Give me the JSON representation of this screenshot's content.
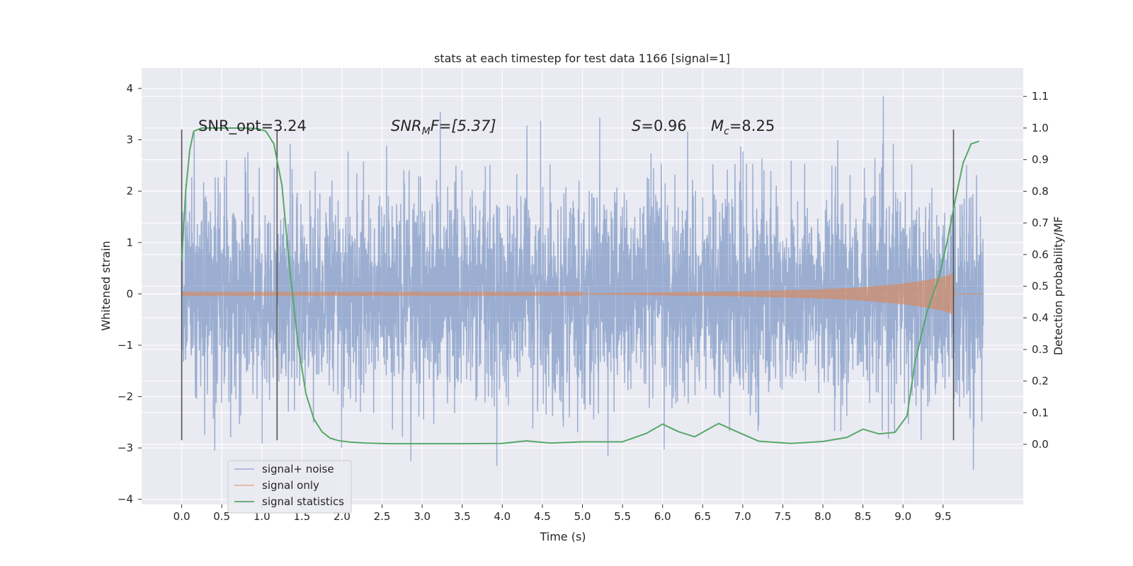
{
  "chart_data": {
    "type": "line",
    "title": "stats at each timestep for test data 1166 [signal=1]",
    "xlabel": "Time (s)",
    "ylabel_left": "Whitened strain",
    "ylabel_right": "Detection probability/MF",
    "xlim": [
      -0.5,
      10.5
    ],
    "ylim_left": [
      -4.1,
      4.4
    ],
    "ylim_right": [
      -0.19,
      1.19
    ],
    "x_ticks": [
      "0.0",
      "0.5",
      "1.0",
      "1.5",
      "2.0",
      "2.5",
      "3.0",
      "3.5",
      "4.0",
      "4.5",
      "5.0",
      "5.5",
      "6.0",
      "6.5",
      "7.0",
      "7.5",
      "8.0",
      "8.5",
      "9.0",
      "9.5"
    ],
    "y_left_ticks": [
      "4",
      "3",
      "2",
      "1",
      "0",
      "−1",
      "−2",
      "−3",
      "−4"
    ],
    "y_right_ticks": [
      "1.1",
      "1.0",
      "0.9",
      "0.8",
      "0.7",
      "0.6",
      "0.5",
      "0.4",
      "0.3",
      "0.2",
      "0.1",
      "0.0"
    ],
    "grid": true,
    "legend_position": "bottom-left",
    "colors": {
      "background": "#eaeaf2",
      "grid": "#ffffff",
      "noise": "#4c72b0",
      "signal": "#dd8452",
      "statistics": "#55a868",
      "vlines": "#555555"
    },
    "annotations": {
      "snr_opt": "SNR_opt=3.24",
      "snr_mf_name": "SNR",
      "snr_mf_sub": "M",
      "snr_mf_rest": "F=[5.37]",
      "s_name": "S",
      "s_rest": "=0.96",
      "mc_name": "M",
      "mc_sub": "c",
      "mc_rest": "=8.25"
    },
    "vertical_lines_x": [
      0.0,
      1.19,
      9.63
    ],
    "series": [
      {
        "name": "signal+ noise",
        "axis": "left",
        "x_range": [
          0.0,
          10.0
        ],
        "typical_amplitude": 1.4,
        "max": 4.05,
        "min": -3.7
      },
      {
        "name": "signal only",
        "axis": "left",
        "x_range": [
          0.0,
          10.0
        ],
        "envelope_x": [
          0.0,
          5.0,
          6.0,
          7.0,
          8.0,
          8.5,
          9.0,
          9.3,
          9.5,
          9.63,
          9.64,
          10.0
        ],
        "envelope_amplitude": [
          0.01,
          0.01,
          0.03,
          0.05,
          0.09,
          0.13,
          0.2,
          0.27,
          0.33,
          0.4,
          0.0,
          0.0
        ]
      },
      {
        "name": "signal statistics",
        "axis": "right",
        "x": [
          0.0,
          0.05,
          0.1,
          0.15,
          0.25,
          0.4,
          0.6,
          0.8,
          0.95,
          1.05,
          1.15,
          1.25,
          1.35,
          1.45,
          1.55,
          1.65,
          1.75,
          1.85,
          1.95,
          2.1,
          2.3,
          2.6,
          3.0,
          3.5,
          4.0,
          4.3,
          4.6,
          5.0,
          5.5,
          5.8,
          6.0,
          6.2,
          6.4,
          6.6,
          6.7,
          6.9,
          7.2,
          7.6,
          8.0,
          8.3,
          8.5,
          8.7,
          8.9,
          9.05,
          9.15,
          9.3,
          9.45,
          9.55,
          9.65,
          9.75,
          9.85,
          9.95
        ],
        "y": [
          0.58,
          0.8,
          0.93,
          0.99,
          1.0,
          1.0,
          1.0,
          1.0,
          0.998,
          0.99,
          0.95,
          0.82,
          0.55,
          0.32,
          0.16,
          0.08,
          0.04,
          0.02,
          0.012,
          0.007,
          0.004,
          0.002,
          0.002,
          0.002,
          0.003,
          0.011,
          0.004,
          0.008,
          0.008,
          0.035,
          0.064,
          0.04,
          0.024,
          0.052,
          0.066,
          0.043,
          0.01,
          0.003,
          0.009,
          0.022,
          0.048,
          0.033,
          0.038,
          0.09,
          0.26,
          0.42,
          0.53,
          0.64,
          0.77,
          0.89,
          0.95,
          0.958
        ]
      }
    ]
  }
}
